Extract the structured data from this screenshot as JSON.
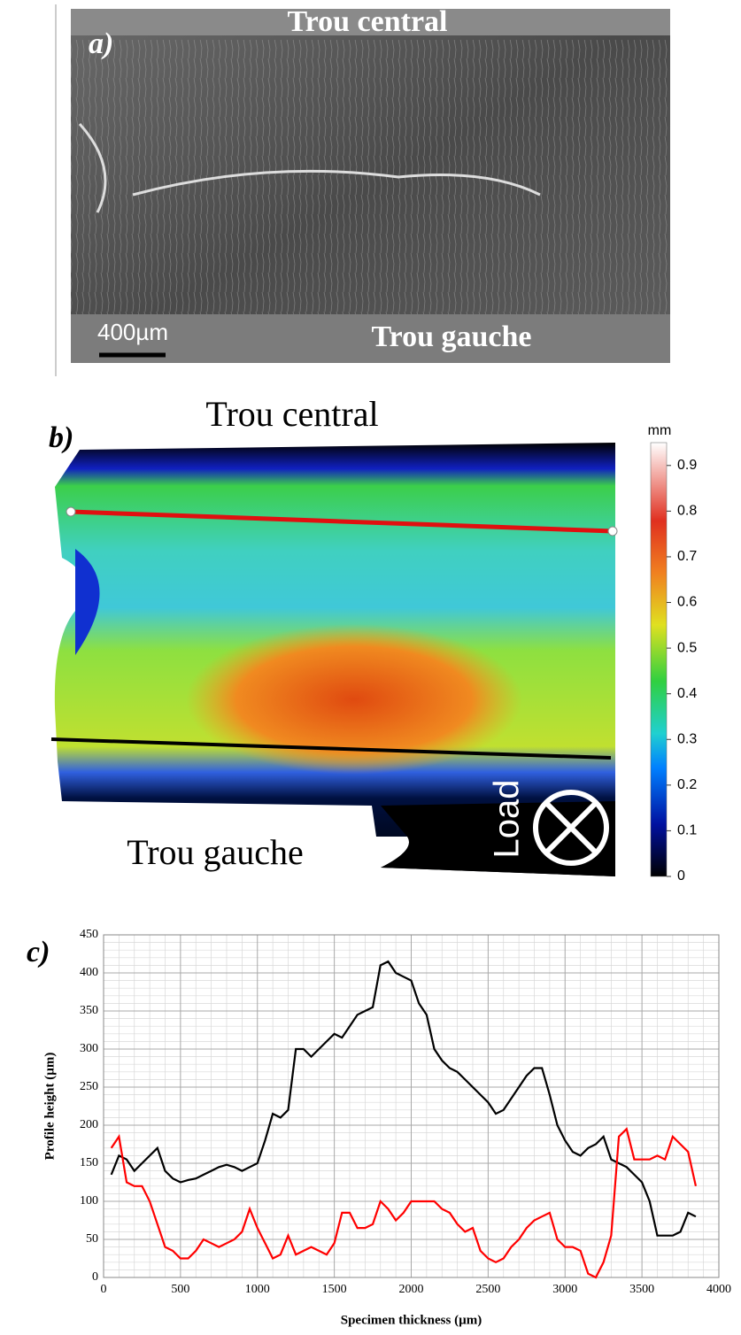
{
  "panel_a": {
    "label": "a)",
    "top_label": "Trou central",
    "bottom_label": "Trou gauche",
    "scale_bar": "400µm"
  },
  "panel_b": {
    "label": "b)",
    "top_label": "Trou central",
    "bottom_label": "Trou gauche",
    "load_label": "Load",
    "colorbar": {
      "unit": "mm",
      "lim": [
        0,
        0.95
      ],
      "ticks": [
        0,
        0.1,
        0.2,
        0.3,
        0.4,
        0.5,
        0.6,
        0.7,
        0.8,
        0.9
      ]
    }
  },
  "chart_data": {
    "type": "line",
    "panel_label": "c)",
    "xlabel": "Specimen thickness (µm)",
    "ylabel": "Profile height (µm)",
    "xlim": [
      0,
      4000
    ],
    "xticks": [
      0,
      500,
      1000,
      1500,
      2000,
      2500,
      3000,
      3500,
      4000
    ],
    "ylim": [
      0,
      450
    ],
    "yticks": [
      0,
      50,
      100,
      150,
      200,
      250,
      300,
      350,
      400,
      450
    ],
    "grid": true,
    "minor_grid": true,
    "x": [
      50,
      100,
      150,
      200,
      250,
      300,
      350,
      400,
      450,
      500,
      550,
      600,
      650,
      700,
      750,
      800,
      850,
      900,
      950,
      1000,
      1050,
      1100,
      1150,
      1200,
      1250,
      1300,
      1350,
      1400,
      1450,
      1500,
      1550,
      1600,
      1650,
      1700,
      1750,
      1800,
      1850,
      1900,
      1950,
      2000,
      2050,
      2100,
      2150,
      2200,
      2250,
      2300,
      2350,
      2400,
      2450,
      2500,
      2550,
      2600,
      2650,
      2700,
      2750,
      2800,
      2850,
      2900,
      2950,
      3000,
      3050,
      3100,
      3150,
      3200,
      3250,
      3300,
      3350,
      3400,
      3450,
      3500,
      3550,
      3600,
      3650,
      3700,
      3750,
      3800,
      3850
    ],
    "series": [
      {
        "color": "#000000",
        "values": [
          135,
          160,
          155,
          140,
          150,
          160,
          170,
          140,
          130,
          125,
          128,
          130,
          135,
          140,
          145,
          148,
          145,
          140,
          145,
          150,
          180,
          215,
          210,
          220,
          300,
          300,
          290,
          300,
          310,
          320,
          315,
          330,
          345,
          350,
          355,
          410,
          415,
          400,
          395,
          390,
          360,
          345,
          300,
          285,
          275,
          270,
          260,
          250,
          240,
          230,
          215,
          220,
          235,
          250,
          265,
          275,
          275,
          240,
          200,
          180,
          165,
          160,
          170,
          175,
          185,
          155,
          150,
          145,
          135,
          125,
          100,
          55,
          55,
          55,
          60,
          85,
          80
        ]
      },
      {
        "color": "#ff0000",
        "values": [
          170,
          185,
          125,
          120,
          120,
          100,
          70,
          40,
          35,
          25,
          25,
          35,
          50,
          45,
          40,
          45,
          50,
          60,
          90,
          65,
          45,
          25,
          30,
          55,
          30,
          35,
          40,
          35,
          30,
          45,
          85,
          85,
          65,
          65,
          70,
          100,
          90,
          75,
          85,
          100,
          100,
          100,
          100,
          90,
          85,
          70,
          60,
          65,
          35,
          25,
          20,
          25,
          40,
          50,
          65,
          75,
          80,
          85,
          50,
          40,
          40,
          35,
          5,
          0,
          20,
          55,
          185,
          195,
          155,
          155,
          155,
          160,
          155,
          185,
          175,
          165,
          120
        ]
      }
    ]
  }
}
